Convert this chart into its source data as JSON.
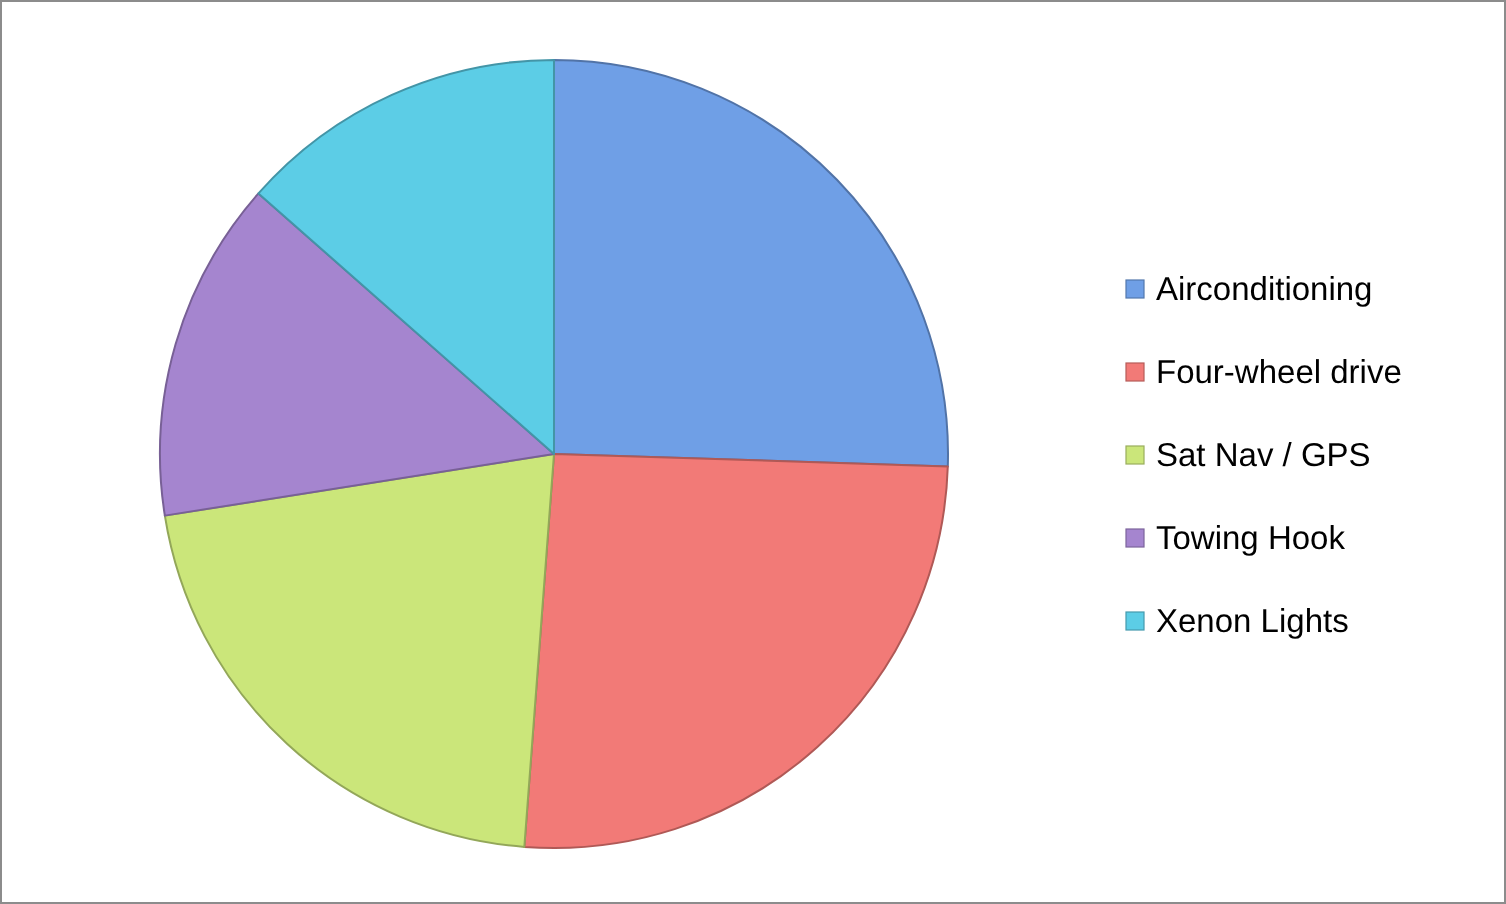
{
  "chart_data": {
    "type": "pie",
    "categories": [
      "Airconditioning",
      "Four-wheel drive",
      "Sat Nav / GPS",
      "Towing Hook",
      "Xenon Lights"
    ],
    "values": [
      25.5,
      25.7,
      21.3,
      14.0,
      13.5
    ],
    "colors": [
      "#6f9fe6",
      "#f27a77",
      "#cbe67a",
      "#a585cf",
      "#5ccde6"
    ],
    "legend": "right"
  }
}
